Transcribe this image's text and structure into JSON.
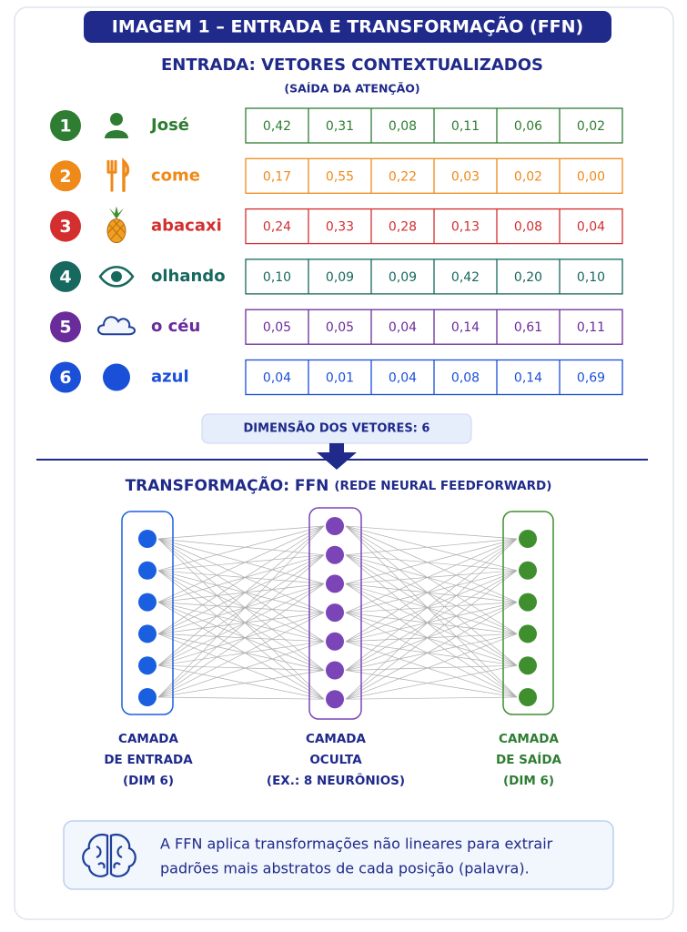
{
  "title": "IMAGEM 1 – ENTRADA E TRANSFORMAÇÃO (FFN)",
  "input": {
    "heading": "ENTRADA: VETORES CONTEXTUALIZADOS",
    "subheading": "(SAÍDA DA ATENÇÃO)",
    "rows": [
      {
        "number": "1",
        "word": "José",
        "color": "#2e7d32",
        "values": [
          "0,42",
          "0,31",
          "0,08",
          "0,11",
          "0,06",
          "0,02"
        ]
      },
      {
        "number": "2",
        "word": "come",
        "color": "#ef8a1a",
        "values": [
          "0,17",
          "0,55",
          "0,22",
          "0,03",
          "0,02",
          "0,00"
        ]
      },
      {
        "number": "3",
        "word": "abacaxi",
        "color": "#d32f2f",
        "values": [
          "0,24",
          "0,33",
          "0,28",
          "0,13",
          "0,08",
          "0,04"
        ]
      },
      {
        "number": "4",
        "word": "olhando",
        "color": "#17685f",
        "values": [
          "0,10",
          "0,09",
          "0,09",
          "0,42",
          "0,20",
          "0,10"
        ]
      },
      {
        "number": "5",
        "word": "o céu",
        "color": "#6a2c9a",
        "values": [
          "0,05",
          "0,05",
          "0,04",
          "0,14",
          "0,61",
          "0,11"
        ]
      },
      {
        "number": "6",
        "word": "azul",
        "color": "#1a4fd8",
        "values": [
          "0,04",
          "0,01",
          "0,04",
          "0,08",
          "0,14",
          "0,69"
        ]
      }
    ],
    "dimension": "DIMENSÃO DOS VETORES: 6"
  },
  "transformation": {
    "heading": "TRANSFORMAÇÃO: FFN",
    "heading_detail": "(REDE NEURAL FEEDFORWARD)",
    "layers": [
      {
        "label": [
          "CAMADA",
          "DE ENTRADA",
          "(DIM 6)"
        ],
        "color": "#1a5fe0"
      },
      {
        "label": [
          "CAMADA",
          "OCULTA",
          "(EX.: 8 NEURÔNIOS)"
        ],
        "color": "#7b45b8"
      },
      {
        "label": [
          "CAMADA",
          "DE SAÍDA",
          "(DIM 6)"
        ],
        "color": "#3f8f2f"
      }
    ]
  },
  "note": {
    "lines": [
      "A FFN aplica transformações não lineares para extrair",
      "padrões mais abstratos de cada posição (palavra)."
    ]
  }
}
